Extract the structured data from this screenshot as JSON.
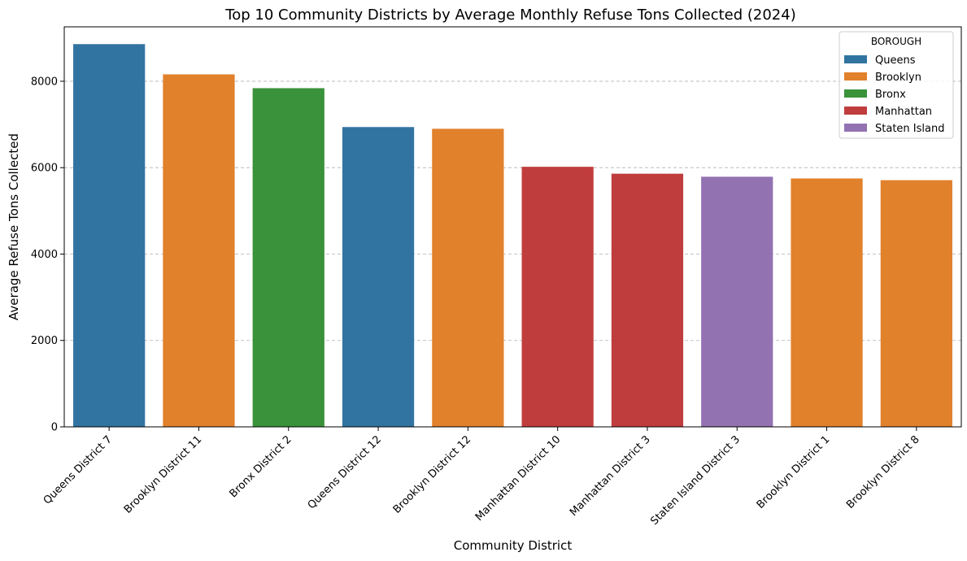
{
  "chart_data": {
    "type": "bar",
    "title": "Top 10 Community Districts by Average Monthly Refuse Tons Collected (2024)",
    "xlabel": "Community District",
    "ylabel": "Average Refuse Tons Collected",
    "ylim": [
      0,
      9260
    ],
    "yticks": [
      0,
      2000,
      4000,
      6000,
      8000
    ],
    "grid": "y, dashed",
    "legend_position": "top-right",
    "legend_title": "BOROUGH",
    "categories": [
      "Queens District 7",
      "Brooklyn District 11",
      "Bronx District 2",
      "Queens District 12",
      "Brooklyn District 12",
      "Manhattan District 10",
      "Manhattan District 3",
      "Staten Island District 3",
      "Brooklyn District 1",
      "Brooklyn District 8"
    ],
    "values": [
      8860,
      8160,
      7840,
      6940,
      6900,
      6020,
      5860,
      5790,
      5750,
      5710
    ],
    "boroughs": [
      "Queens",
      "Brooklyn",
      "Bronx",
      "Queens",
      "Brooklyn",
      "Manhattan",
      "Manhattan",
      "Staten Island",
      "Brooklyn",
      "Brooklyn"
    ],
    "legend": [
      {
        "name": "Queens",
        "color": "#3274a1"
      },
      {
        "name": "Brooklyn",
        "color": "#e1812c"
      },
      {
        "name": "Bronx",
        "color": "#3a923a"
      },
      {
        "name": "Manhattan",
        "color": "#c03d3e"
      },
      {
        "name": "Staten Island",
        "color": "#9372b2"
      }
    ]
  }
}
